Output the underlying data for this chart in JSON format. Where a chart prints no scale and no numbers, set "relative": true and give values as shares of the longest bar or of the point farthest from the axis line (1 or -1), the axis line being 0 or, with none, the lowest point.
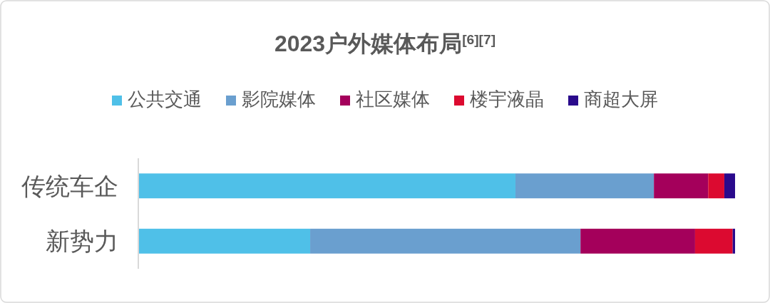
{
  "chart_data": {
    "type": "bar",
    "title": "2023户外媒体布局$^{[6][7]}$",
    "orientation": "horizontal",
    "stacked": true,
    "relative": true,
    "legend": "top",
    "categories": [
      "传统车企",
      "新势力"
    ],
    "series": [
      {
        "name": "公共交通",
        "color": "#4fc0e8",
        "values": [
          0.632,
          0.288
        ]
      },
      {
        "name": "影院媒体",
        "color": "#6a9fcf",
        "values": [
          0.232,
          0.453
        ]
      },
      {
        "name": "社区媒体",
        "color": "#a4005b",
        "values": [
          0.091,
          0.192
        ]
      },
      {
        "name": "楼宇液晶",
        "color": "#dc0a30",
        "values": [
          0.027,
          0.063
        ]
      },
      {
        "name": "商超大屏",
        "color": "#2a0a8c",
        "values": [
          0.018,
          0.004
        ]
      }
    ]
  }
}
